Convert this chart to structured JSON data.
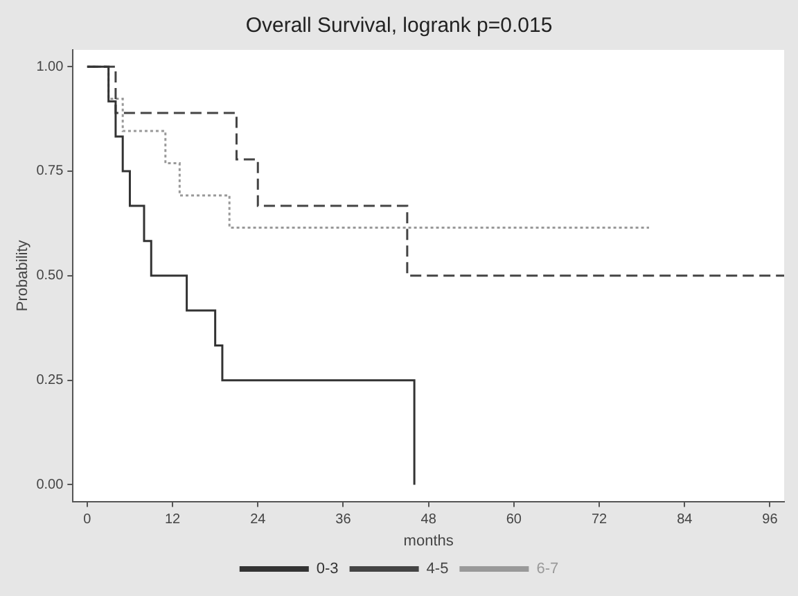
{
  "chart_data": {
    "type": "step",
    "title": "Overall Survival, logrank p=0.015",
    "xlabel": "months",
    "ylabel": "Probability",
    "series": [
      {
        "name": "0-3",
        "color": "#333333",
        "line_style": "solid",
        "x": [
          0,
          3,
          4,
          5,
          6,
          8,
          9,
          14,
          18,
          19,
          46
        ],
        "values": [
          1,
          0.917,
          0.833,
          0.75,
          0.667,
          0.583,
          0.5,
          0.417,
          0.333,
          0.25,
          0
        ]
      },
      {
        "name": "4-5",
        "color": "#444444",
        "line_style": "dashed",
        "x": [
          0,
          4,
          21,
          24,
          45,
          98
        ],
        "values": [
          1,
          0.889,
          0.778,
          0.667,
          0.5,
          0.5
        ]
      },
      {
        "name": "6-7",
        "color": "#999999",
        "line_style": "dotted",
        "x": [
          0,
          3,
          5,
          11,
          13,
          20,
          79
        ],
        "values": [
          1,
          0.923,
          0.846,
          0.769,
          0.692,
          0.615,
          0.615
        ]
      }
    ],
    "xlim": [
      -2,
      98
    ],
    "xticks": [
      0,
      12,
      24,
      36,
      48,
      60,
      72,
      84,
      96
    ],
    "ylim": [
      -0.04,
      1.04
    ],
    "yticks": [
      {
        "value": 0,
        "label": "0.00"
      },
      {
        "value": 0.25,
        "label": "0.25"
      },
      {
        "value": 0.5,
        "label": "0.50"
      },
      {
        "value": 0.75,
        "label": "0.75"
      },
      {
        "value": 1,
        "label": "1.00"
      }
    ],
    "grid": false,
    "legend": "bottom",
    "marker": "none"
  }
}
